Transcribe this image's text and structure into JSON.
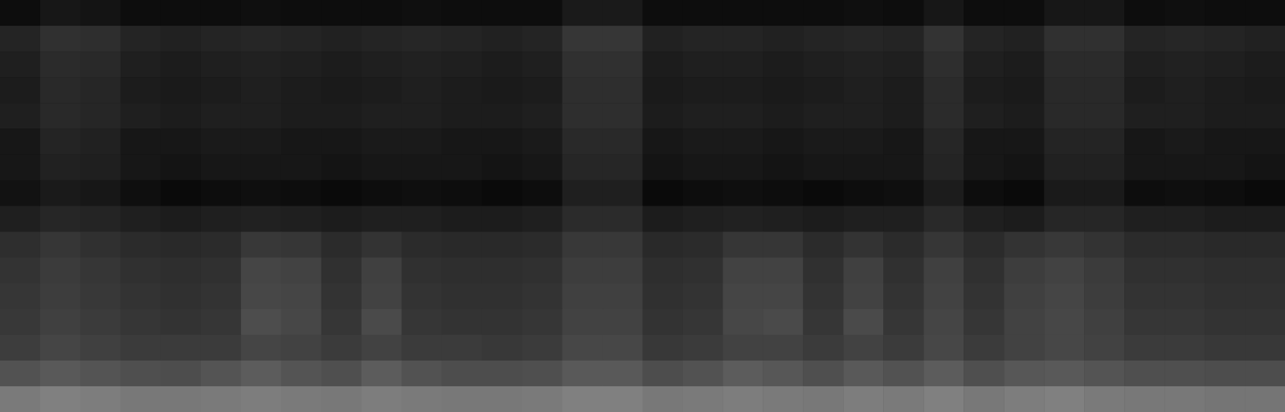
{
  "chart_data": {
    "type": "heatmap",
    "tick_labels": false,
    "color_range": [
      0,
      1
    ],
    "cells": [
      [
        0.05,
        0.09,
        0.08,
        0.05,
        0.05,
        0.05,
        0.06,
        0.05,
        0.05,
        0.05,
        0.06,
        0.05,
        0.05,
        0.05,
        0.1,
        0.1,
        0.05,
        0.05,
        0.05,
        0.05,
        0.05,
        0.06,
        0.05,
        0.09,
        0.05,
        0.05,
        0.09,
        0.09,
        0.05,
        0.06,
        0.05,
        0.05
      ],
      [
        0.14,
        0.19,
        0.18,
        0.14,
        0.13,
        0.14,
        0.15,
        0.14,
        0.13,
        0.14,
        0.15,
        0.14,
        0.13,
        0.14,
        0.21,
        0.21,
        0.13,
        0.14,
        0.14,
        0.13,
        0.14,
        0.15,
        0.14,
        0.2,
        0.14,
        0.13,
        0.19,
        0.19,
        0.14,
        0.15,
        0.14,
        0.13
      ],
      [
        0.12,
        0.17,
        0.16,
        0.12,
        0.11,
        0.12,
        0.13,
        0.12,
        0.11,
        0.12,
        0.13,
        0.12,
        0.11,
        0.12,
        0.19,
        0.19,
        0.11,
        0.12,
        0.12,
        0.11,
        0.12,
        0.13,
        0.12,
        0.18,
        0.12,
        0.11,
        0.17,
        0.17,
        0.12,
        0.13,
        0.12,
        0.11
      ],
      [
        0.11,
        0.16,
        0.15,
        0.11,
        0.1,
        0.11,
        0.12,
        0.11,
        0.1,
        0.11,
        0.12,
        0.11,
        0.1,
        0.11,
        0.18,
        0.18,
        0.1,
        0.11,
        0.11,
        0.1,
        0.11,
        0.12,
        0.11,
        0.17,
        0.11,
        0.1,
        0.16,
        0.16,
        0.11,
        0.12,
        0.11,
        0.1
      ],
      [
        0.12,
        0.16,
        0.15,
        0.12,
        0.11,
        0.12,
        0.12,
        0.11,
        0.11,
        0.12,
        0.12,
        0.11,
        0.11,
        0.12,
        0.18,
        0.18,
        0.11,
        0.12,
        0.12,
        0.11,
        0.12,
        0.12,
        0.11,
        0.17,
        0.12,
        0.11,
        0.16,
        0.16,
        0.12,
        0.12,
        0.11,
        0.11
      ],
      [
        0.09,
        0.14,
        0.13,
        0.09,
        0.09,
        0.1,
        0.1,
        0.09,
        0.09,
        0.1,
        0.1,
        0.09,
        0.09,
        0.1,
        0.16,
        0.16,
        0.09,
        0.1,
        0.1,
        0.09,
        0.1,
        0.1,
        0.09,
        0.15,
        0.09,
        0.09,
        0.14,
        0.14,
        0.09,
        0.1,
        0.09,
        0.09
      ],
      [
        0.09,
        0.13,
        0.12,
        0.09,
        0.08,
        0.09,
        0.09,
        0.09,
        0.08,
        0.09,
        0.09,
        0.09,
        0.08,
        0.09,
        0.15,
        0.15,
        0.08,
        0.09,
        0.09,
        0.08,
        0.09,
        0.09,
        0.09,
        0.14,
        0.09,
        0.08,
        0.13,
        0.13,
        0.09,
        0.09,
        0.09,
        0.08
      ],
      [
        0.07,
        0.1,
        0.09,
        0.06,
        0.04,
        0.05,
        0.06,
        0.05,
        0.04,
        0.05,
        0.06,
        0.05,
        0.04,
        0.05,
        0.12,
        0.12,
        0.04,
        0.05,
        0.06,
        0.05,
        0.04,
        0.05,
        0.06,
        0.11,
        0.05,
        0.04,
        0.1,
        0.1,
        0.05,
        0.06,
        0.05,
        0.04
      ],
      [
        0.12,
        0.15,
        0.14,
        0.12,
        0.11,
        0.12,
        0.13,
        0.12,
        0.11,
        0.12,
        0.12,
        0.11,
        0.11,
        0.12,
        0.17,
        0.17,
        0.11,
        0.12,
        0.13,
        0.12,
        0.11,
        0.12,
        0.12,
        0.16,
        0.12,
        0.11,
        0.15,
        0.15,
        0.12,
        0.12,
        0.11,
        0.11
      ],
      [
        0.18,
        0.21,
        0.19,
        0.17,
        0.16,
        0.17,
        0.22,
        0.21,
        0.17,
        0.2,
        0.17,
        0.16,
        0.16,
        0.17,
        0.22,
        0.22,
        0.16,
        0.17,
        0.21,
        0.21,
        0.17,
        0.2,
        0.17,
        0.21,
        0.17,
        0.2,
        0.22,
        0.2,
        0.17,
        0.17,
        0.16,
        0.16
      ],
      [
        0.2,
        0.23,
        0.21,
        0.19,
        0.18,
        0.19,
        0.27,
        0.26,
        0.19,
        0.25,
        0.19,
        0.18,
        0.18,
        0.19,
        0.24,
        0.24,
        0.18,
        0.19,
        0.26,
        0.26,
        0.19,
        0.25,
        0.19,
        0.25,
        0.19,
        0.24,
        0.26,
        0.23,
        0.19,
        0.19,
        0.18,
        0.18
      ],
      [
        0.21,
        0.24,
        0.22,
        0.2,
        0.19,
        0.2,
        0.28,
        0.27,
        0.2,
        0.26,
        0.2,
        0.19,
        0.19,
        0.2,
        0.25,
        0.25,
        0.19,
        0.2,
        0.27,
        0.27,
        0.2,
        0.26,
        0.2,
        0.26,
        0.2,
        0.25,
        0.27,
        0.24,
        0.2,
        0.2,
        0.19,
        0.19
      ],
      [
        0.22,
        0.25,
        0.23,
        0.21,
        0.2,
        0.21,
        0.3,
        0.28,
        0.21,
        0.29,
        0.21,
        0.2,
        0.2,
        0.21,
        0.26,
        0.26,
        0.2,
        0.21,
        0.28,
        0.29,
        0.21,
        0.29,
        0.21,
        0.27,
        0.21,
        0.26,
        0.28,
        0.25,
        0.21,
        0.21,
        0.2,
        0.2
      ],
      [
        0.24,
        0.27,
        0.25,
        0.23,
        0.23,
        0.23,
        0.27,
        0.26,
        0.23,
        0.26,
        0.23,
        0.23,
        0.22,
        0.23,
        0.28,
        0.28,
        0.22,
        0.23,
        0.26,
        0.26,
        0.23,
        0.26,
        0.23,
        0.28,
        0.23,
        0.26,
        0.28,
        0.26,
        0.23,
        0.23,
        0.22,
        0.22
      ],
      [
        0.32,
        0.35,
        0.33,
        0.31,
        0.3,
        0.33,
        0.36,
        0.33,
        0.31,
        0.36,
        0.32,
        0.3,
        0.3,
        0.31,
        0.35,
        0.35,
        0.3,
        0.32,
        0.36,
        0.34,
        0.31,
        0.35,
        0.32,
        0.36,
        0.31,
        0.34,
        0.35,
        0.33,
        0.31,
        0.31,
        0.3,
        0.3
      ],
      [
        0.48,
        0.5,
        0.49,
        0.47,
        0.47,
        0.48,
        0.49,
        0.48,
        0.47,
        0.49,
        0.48,
        0.47,
        0.47,
        0.48,
        0.5,
        0.5,
        0.47,
        0.48,
        0.49,
        0.48,
        0.47,
        0.49,
        0.48,
        0.5,
        0.47,
        0.49,
        0.5,
        0.48,
        0.47,
        0.47,
        0.46,
        0.46
      ]
    ]
  }
}
